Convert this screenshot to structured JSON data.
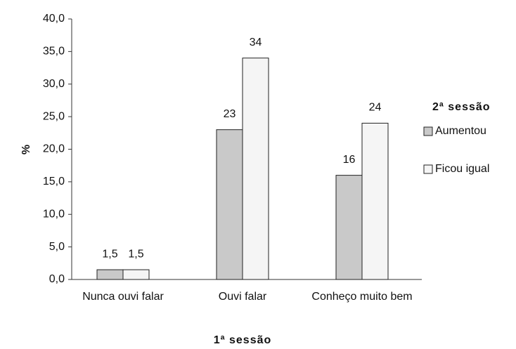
{
  "chart_data": {
    "type": "bar",
    "y_label": "%",
    "x_label": "1ª sessão",
    "legend_title": "2ª sessão",
    "categories": [
      "Nunca ouvi falar",
      "Ouvi falar",
      "Conheço muito bem"
    ],
    "series": [
      {
        "name": "Aumentou",
        "color": "#c9c9c9",
        "values": [
          1.5,
          23,
          16
        ],
        "value_labels": [
          "1,5",
          "23",
          "16"
        ]
      },
      {
        "name": "Ficou igual",
        "color": "#f5f5f5",
        "values": [
          1.5,
          34,
          24
        ],
        "value_labels": [
          "1,5",
          "34",
          "24"
        ]
      }
    ],
    "ylim": [
      0,
      40
    ],
    "yticks": [
      {
        "value": 0,
        "label": "0,0"
      },
      {
        "value": 5,
        "label": "5,0"
      },
      {
        "value": 10,
        "label": "10,0"
      },
      {
        "value": 15,
        "label": "15,0"
      },
      {
        "value": 20,
        "label": "20,0"
      },
      {
        "value": 25,
        "label": "25,0"
      },
      {
        "value": 30,
        "label": "30,0"
      },
      {
        "value": 35,
        "label": "35,0"
      },
      {
        "value": 40,
        "label": "40,0"
      }
    ],
    "grid": false,
    "legend": "right"
  }
}
